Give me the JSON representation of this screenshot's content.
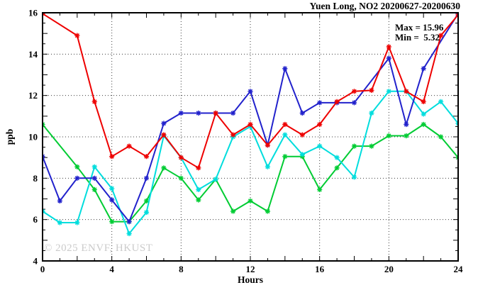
{
  "chart_data": {
    "type": "line",
    "title": "Yuen Long, NO2 20200627-20200630",
    "xlabel": "Hours",
    "ylabel": "ppb",
    "xlim": [
      0,
      24
    ],
    "ylim": [
      4,
      16
    ],
    "grid": "dotted",
    "legend": "none",
    "x_major_ticks": [
      0,
      4,
      8,
      12,
      16,
      20,
      24
    ],
    "y_major_ticks": [
      4,
      6,
      8,
      10,
      12,
      14,
      16
    ],
    "x_gridlines": [
      4,
      8,
      12,
      16,
      20
    ],
    "y_gridlines": [
      6,
      8,
      10,
      12,
      14
    ],
    "annotations": {
      "max_label": "Max = 15.96",
      "min_label": "Min =  5.32",
      "max_value": 15.96,
      "min_value": 5.32
    },
    "watermark": "© 2025 ENVF, HKUST",
    "x": [
      0,
      1,
      2,
      3,
      4,
      5,
      6,
      7,
      8,
      9,
      10,
      11,
      12,
      13,
      14,
      15,
      16,
      17,
      18,
      19,
      20,
      21,
      22,
      23,
      24
    ],
    "series": [
      {
        "name": "series-green",
        "color": "#00cc33",
        "values": [
          10.6,
          null,
          8.55,
          7.45,
          5.9,
          5.9,
          6.9,
          8.5,
          8.0,
          6.95,
          7.95,
          6.4,
          6.9,
          6.4,
          9.05,
          9.05,
          7.45,
          8.5,
          9.55,
          9.55,
          10.05,
          10.05,
          10.6,
          10.0,
          9.0
        ]
      },
      {
        "name": "series-cyan",
        "color": "#00dddd",
        "values": [
          6.4,
          5.85,
          5.85,
          8.55,
          7.5,
          5.32,
          6.35,
          10.05,
          9.0,
          7.45,
          7.95,
          10.0,
          10.5,
          8.55,
          10.1,
          9.15,
          9.55,
          9.0,
          8.05,
          11.15,
          12.2,
          12.2,
          11.1,
          11.7,
          10.65
        ]
      },
      {
        "name": "series-blue",
        "color": "#2222cc",
        "values": [
          9.05,
          6.9,
          8.0,
          8.0,
          6.95,
          5.9,
          8.0,
          10.65,
          11.15,
          11.15,
          11.15,
          11.15,
          12.2,
          9.6,
          13.3,
          11.15,
          11.65,
          11.65,
          11.65,
          null,
          13.8,
          10.6,
          13.3,
          null,
          15.96
        ]
      },
      {
        "name": "series-red",
        "color": "#ee0000",
        "values": [
          15.96,
          null,
          14.9,
          11.7,
          9.05,
          9.55,
          9.05,
          10.1,
          9.0,
          8.5,
          11.15,
          10.1,
          10.6,
          9.6,
          10.6,
          10.1,
          10.6,
          11.7,
          12.2,
          12.25,
          14.35,
          12.2,
          11.7,
          14.9,
          15.9
        ]
      }
    ]
  }
}
